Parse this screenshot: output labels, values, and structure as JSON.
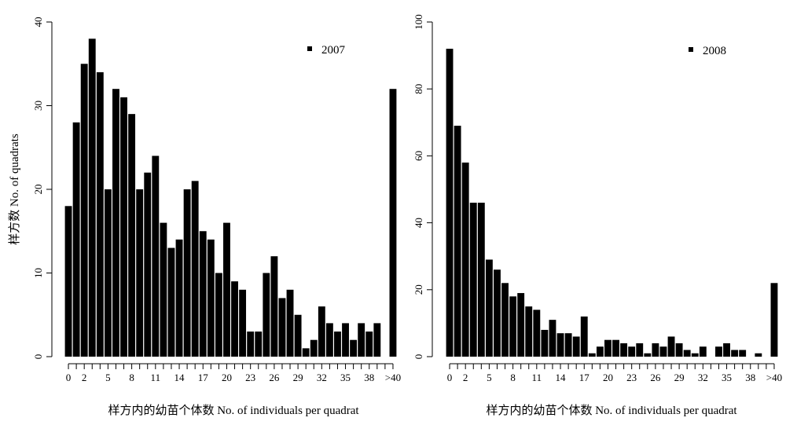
{
  "chart_data": [
    {
      "type": "bar",
      "ylabel": "样方数  No. of quadrats",
      "xlabel": "样方内的幼苗个体数 No. of individuals per quadrat",
      "legend": "2007",
      "legend_position": "top-right",
      "ylim": [
        0,
        40
      ],
      "yticks": [
        "0",
        "10",
        "20",
        "30",
        "40"
      ],
      "x_tick_labels": [
        "0",
        "2",
        "5",
        "8",
        "11",
        "14",
        "17",
        "20",
        "23",
        "26",
        "29",
        "32",
        "35",
        "38",
        ">40"
      ],
      "categories": [
        "0",
        "1",
        "2",
        "3",
        "4",
        "5",
        "6",
        "7",
        "8",
        "9",
        "10",
        "11",
        "12",
        "13",
        "14",
        "15",
        "16",
        "17",
        "18",
        "19",
        "20",
        "21",
        "22",
        "23",
        "24",
        "25",
        "26",
        "27",
        "28",
        "29",
        "30",
        "31",
        "32",
        "33",
        "34",
        "35",
        "36",
        "37",
        "38",
        "39",
        "40",
        ">40"
      ],
      "values": [
        18,
        28,
        35,
        38,
        34,
        20,
        32,
        31,
        29,
        20,
        22,
        24,
        16,
        13,
        14,
        20,
        21,
        15,
        14,
        10,
        16,
        9,
        8,
        3,
        3,
        10,
        12,
        7,
        8,
        5,
        1,
        2,
        6,
        4,
        3,
        4,
        2,
        4,
        3,
        4,
        0,
        32
      ]
    },
    {
      "type": "bar",
      "ylabel": "",
      "xlabel": "样方内的幼苗个体数 No. of individuals per quadrat",
      "legend": "2008",
      "legend_position": "top-right",
      "ylim": [
        0,
        100
      ],
      "yticks": [
        "0",
        "20",
        "40",
        "60",
        "80",
        "100"
      ],
      "x_tick_labels": [
        "0",
        "2",
        "5",
        "8",
        "11",
        "14",
        "17",
        "20",
        "23",
        "26",
        "29",
        "32",
        "35",
        "38",
        ">40"
      ],
      "categories": [
        "0",
        "1",
        "2",
        "3",
        "4",
        "5",
        "6",
        "7",
        "8",
        "9",
        "10",
        "11",
        "12",
        "13",
        "14",
        "15",
        "16",
        "17",
        "18",
        "19",
        "20",
        "21",
        "22",
        "23",
        "24",
        "25",
        "26",
        "27",
        "28",
        "29",
        "30",
        "31",
        "32",
        "33",
        "34",
        "35",
        "36",
        "37",
        "38",
        "39",
        "40",
        ">40"
      ],
      "values": [
        92,
        69,
        58,
        46,
        46,
        29,
        26,
        22,
        18,
        19,
        15,
        14,
        8,
        11,
        7,
        7,
        6,
        12,
        1,
        3,
        5,
        5,
        4,
        3,
        4,
        1,
        4,
        3,
        6,
        4,
        2,
        1,
        3,
        0,
        3,
        4,
        2,
        2,
        0,
        1,
        0,
        22
      ]
    }
  ]
}
